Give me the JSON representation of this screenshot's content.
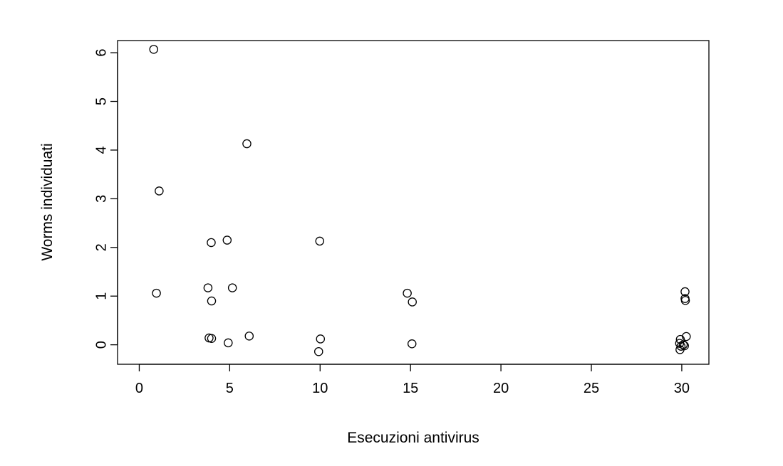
{
  "chart_data": {
    "type": "scatter",
    "xlabel": "Esecuzioni antivirus",
    "ylabel": "Worms individuati",
    "xlim": [
      -1.2,
      31.5
    ],
    "ylim": [
      -0.4,
      6.25
    ],
    "xticks": [
      0,
      5,
      10,
      15,
      20,
      25,
      30
    ],
    "yticks": [
      0,
      1,
      2,
      3,
      4,
      5,
      6
    ],
    "grid": false,
    "marker": "open-circle",
    "points": [
      {
        "x": 0.8,
        "y": 6.07
      },
      {
        "x": 1.1,
        "y": 3.16
      },
      {
        "x": 0.95,
        "y": 1.06
      },
      {
        "x": 5.95,
        "y": 4.13
      },
      {
        "x": 3.98,
        "y": 2.1
      },
      {
        "x": 4.86,
        "y": 2.15
      },
      {
        "x": 3.8,
        "y": 1.17
      },
      {
        "x": 5.15,
        "y": 1.17
      },
      {
        "x": 4.0,
        "y": 0.9
      },
      {
        "x": 3.86,
        "y": 0.14
      },
      {
        "x": 4.0,
        "y": 0.13
      },
      {
        "x": 4.92,
        "y": 0.04
      },
      {
        "x": 6.08,
        "y": 0.18
      },
      {
        "x": 9.98,
        "y": 2.13
      },
      {
        "x": 10.02,
        "y": 0.12
      },
      {
        "x": 9.92,
        "y": -0.14
      },
      {
        "x": 14.82,
        "y": 1.06
      },
      {
        "x": 15.1,
        "y": 0.88
      },
      {
        "x": 15.08,
        "y": 0.02
      },
      {
        "x": 30.18,
        "y": 1.09
      },
      {
        "x": 30.18,
        "y": 0.95
      },
      {
        "x": 30.2,
        "y": 0.91
      },
      {
        "x": 30.25,
        "y": 0.17
      },
      {
        "x": 29.92,
        "y": 0.11
      },
      {
        "x": 29.88,
        "y": 0.03
      },
      {
        "x": 30.08,
        "y": 0.0
      },
      {
        "x": 30.15,
        "y": -0.02
      },
      {
        "x": 29.96,
        "y": -0.03
      },
      {
        "x": 29.9,
        "y": -0.1
      }
    ]
  }
}
